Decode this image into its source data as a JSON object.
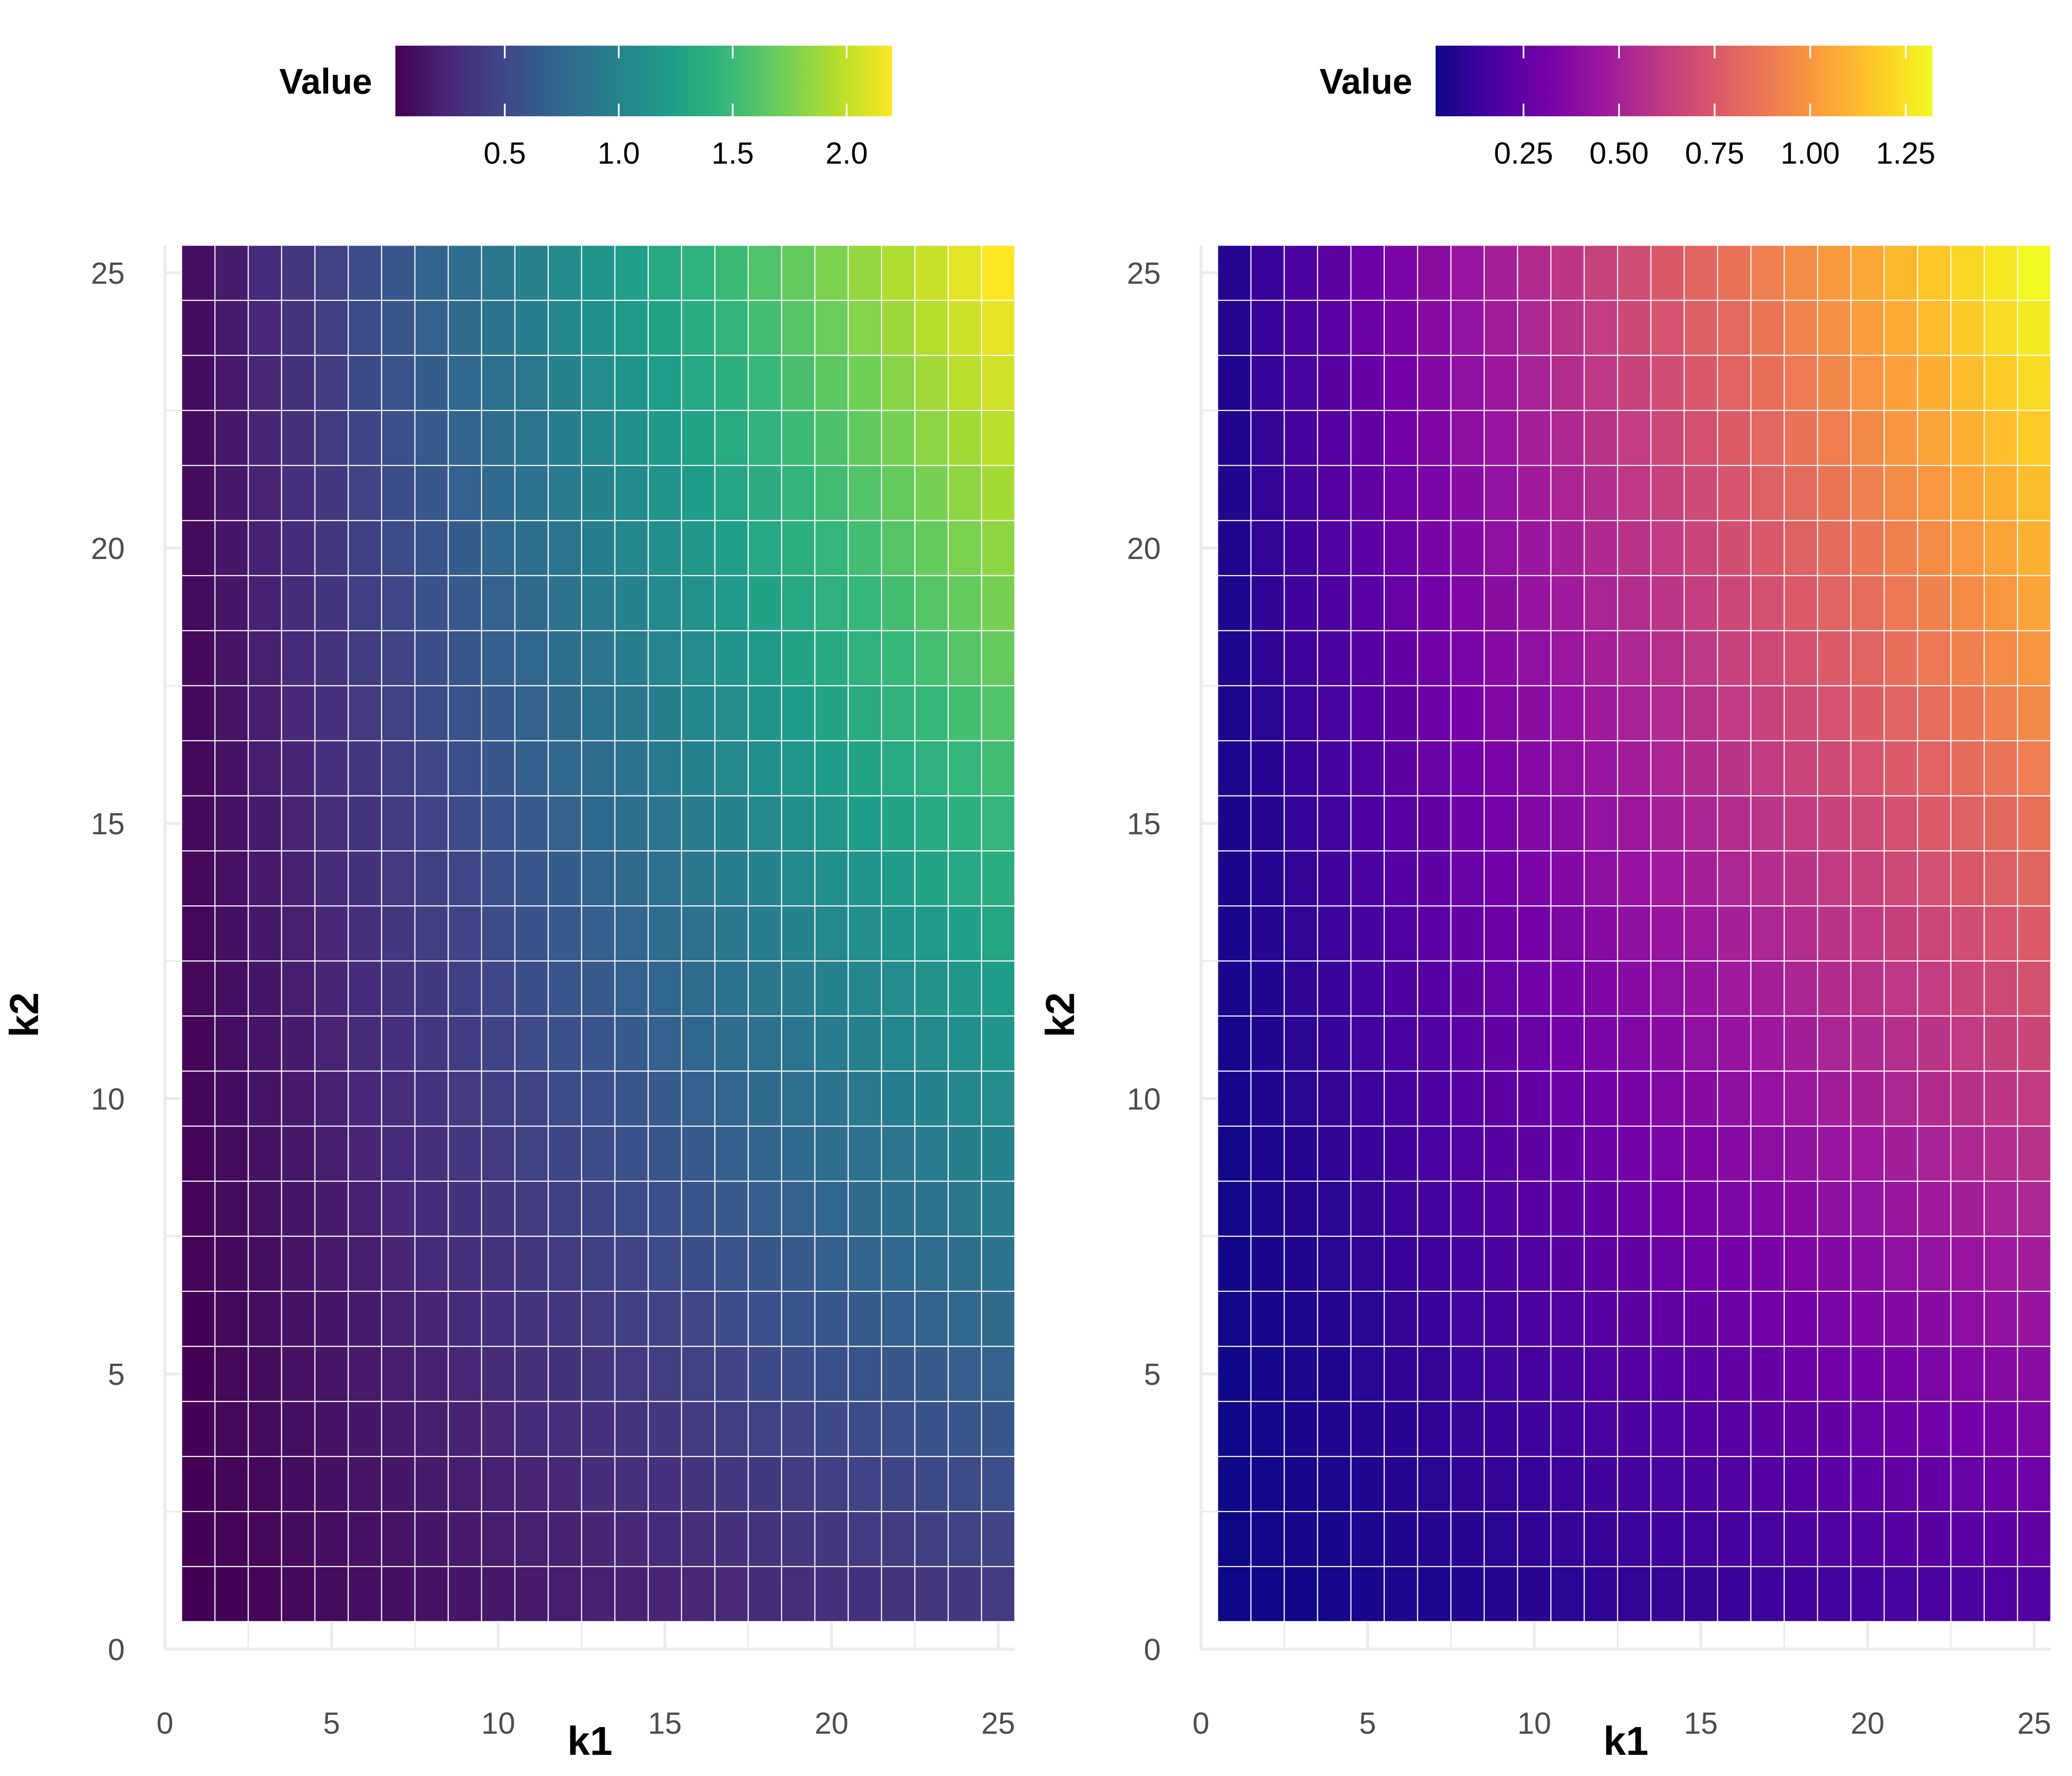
{
  "chart_data": [
    {
      "type": "heatmap",
      "panel": "left",
      "x": [
        1,
        2,
        3,
        4,
        5,
        6,
        7,
        8,
        9,
        10,
        11,
        12,
        13,
        14,
        15,
        16,
        17,
        18,
        19,
        20,
        21,
        22,
        23,
        24,
        25
      ],
      "y": [
        1,
        2,
        3,
        4,
        5,
        6,
        7,
        8,
        9,
        10,
        11,
        12,
        13,
        14,
        15,
        16,
        17,
        18,
        19,
        20,
        21,
        22,
        23,
        24,
        25
      ],
      "value_formula_note": "",
      "z_corners": {
        "k1_1_k2_1": 0.02,
        "k1_25_k2_1": 0.4,
        "k1_1_k2_25": 0.1,
        "k1_25_k2_25": 2.2
      },
      "xlabel": "k1",
      "ylabel": "k2",
      "xlim": [
        0,
        25.5
      ],
      "ylim": [
        0,
        25.5
      ],
      "x_ticks": [
        "0",
        "5",
        "10",
        "15",
        "20",
        "25"
      ],
      "y_ticks": [
        "0",
        "5",
        "10",
        "15",
        "20",
        "25"
      ],
      "legend": {
        "title": "Value",
        "position": "top",
        "colormap": "viridis",
        "range": [
          0.02,
          2.2
        ],
        "tick_values": [
          0.5,
          1.0,
          1.5,
          2.0
        ],
        "tick_labels": [
          "0.5",
          "1.0",
          "1.5",
          "2.0"
        ],
        "colors": [
          "#440154",
          "#482878",
          "#3e4989",
          "#31688e",
          "#26828e",
          "#1f9e89",
          "#35b779",
          "#6ece58",
          "#b5de2b",
          "#fde725"
        ]
      }
    },
    {
      "type": "heatmap",
      "panel": "right",
      "x": [
        1,
        2,
        3,
        4,
        5,
        6,
        7,
        8,
        9,
        10,
        11,
        12,
        13,
        14,
        15,
        16,
        17,
        18,
        19,
        20,
        21,
        22,
        23,
        24,
        25
      ],
      "y": [
        1,
        2,
        3,
        4,
        5,
        6,
        7,
        8,
        9,
        10,
        11,
        12,
        13,
        14,
        15,
        16,
        17,
        18,
        19,
        20,
        21,
        22,
        23,
        24,
        25
      ],
      "z_corners": {
        "k1_1_k2_1": 0.02,
        "k1_25_k2_1": 0.2,
        "k1_1_k2_25": 0.08,
        "k1_25_k2_25": 1.32
      },
      "xlabel": "k1",
      "ylabel": "k2",
      "xlim": [
        0,
        25.5
      ],
      "ylim": [
        0,
        25.5
      ],
      "x_ticks": [
        "0",
        "5",
        "10",
        "15",
        "20",
        "25"
      ],
      "y_ticks": [
        "0",
        "5",
        "10",
        "15",
        "20",
        "25"
      ],
      "legend": {
        "title": "Value",
        "position": "top",
        "colormap": "plasma",
        "range": [
          0.02,
          1.32
        ],
        "tick_values": [
          0.25,
          0.5,
          0.75,
          1.0,
          1.25
        ],
        "tick_labels": [
          "0.25",
          "0.50",
          "0.75",
          "1.00",
          "1.25"
        ],
        "colors": [
          "#0d0887",
          "#47039f",
          "#7301a8",
          "#9c179e",
          "#bd3786",
          "#d8576b",
          "#ed7953",
          "#fb9f3a",
          "#fdca26",
          "#f0f921"
        ]
      }
    }
  ]
}
